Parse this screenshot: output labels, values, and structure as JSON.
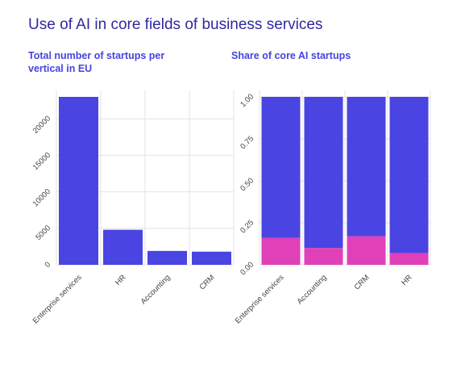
{
  "title": "Use of AI in core fields of business services",
  "colors": {
    "primary": "#4a44e2",
    "secondary": "#e040b8",
    "grid": "#e3e3e3",
    "title": "#2e2a9e"
  },
  "chart_data": [
    {
      "type": "bar",
      "title": "Total number of startups per vertical in EU",
      "categories": [
        "Enterprise services",
        "HR",
        "Accounting",
        "CRM"
      ],
      "values": [
        23000,
        4800,
        1900,
        1800
      ],
      "ylim": [
        0,
        23000
      ],
      "yticks": [
        "0",
        "5000",
        "10000",
        "15000",
        "20000"
      ],
      "grid": true
    },
    {
      "type": "bar",
      "stacked": true,
      "title": "Share of core AI startups",
      "categories": [
        "Enterprise services",
        "Accounting",
        "CRM",
        "HR"
      ],
      "series": [
        {
          "values": [
            0.16,
            0.1,
            0.17,
            0.07
          ]
        },
        {
          "values": [
            0.84,
            0.9,
            0.83,
            0.93
          ]
        }
      ],
      "ylim": [
        0,
        1
      ],
      "yticks": [
        "0.00",
        "0.25",
        "0.50",
        "0.75",
        "1.00"
      ],
      "grid": true
    }
  ]
}
